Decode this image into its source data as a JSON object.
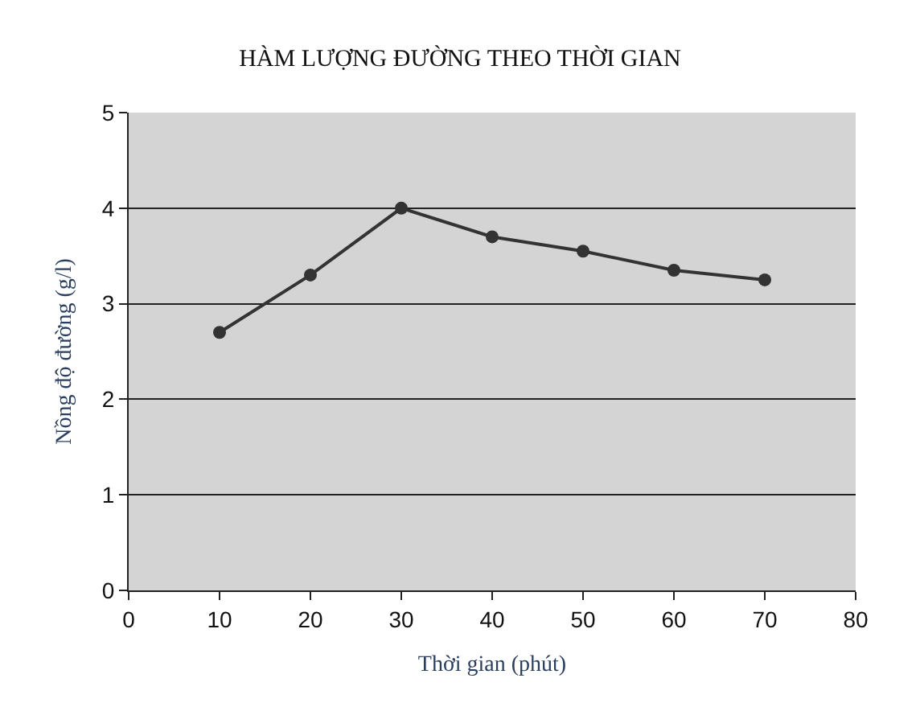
{
  "chart_data": {
    "type": "line",
    "title": "HÀM LƯỢNG ĐƯỜNG THEO THỜI GIAN",
    "xlabel": "Thời gian (phút)",
    "ylabel": "Nồng độ đường (g/l)",
    "x": [
      10,
      20,
      30,
      40,
      50,
      60,
      70
    ],
    "series": [
      {
        "color": "#333333",
        "values": [
          2.7,
          3.3,
          4.0,
          3.7,
          3.55,
          3.35,
          3.25
        ]
      }
    ],
    "xlim": [
      0,
      80
    ],
    "xticks": [
      0,
      10,
      20,
      30,
      40,
      50,
      60,
      70,
      80
    ],
    "ylim": [
      0,
      5
    ],
    "yticks": [
      0,
      1,
      2,
      3,
      4,
      5
    ],
    "grid": "y",
    "legend": false,
    "marker": "circle",
    "line_style": "solid"
  }
}
